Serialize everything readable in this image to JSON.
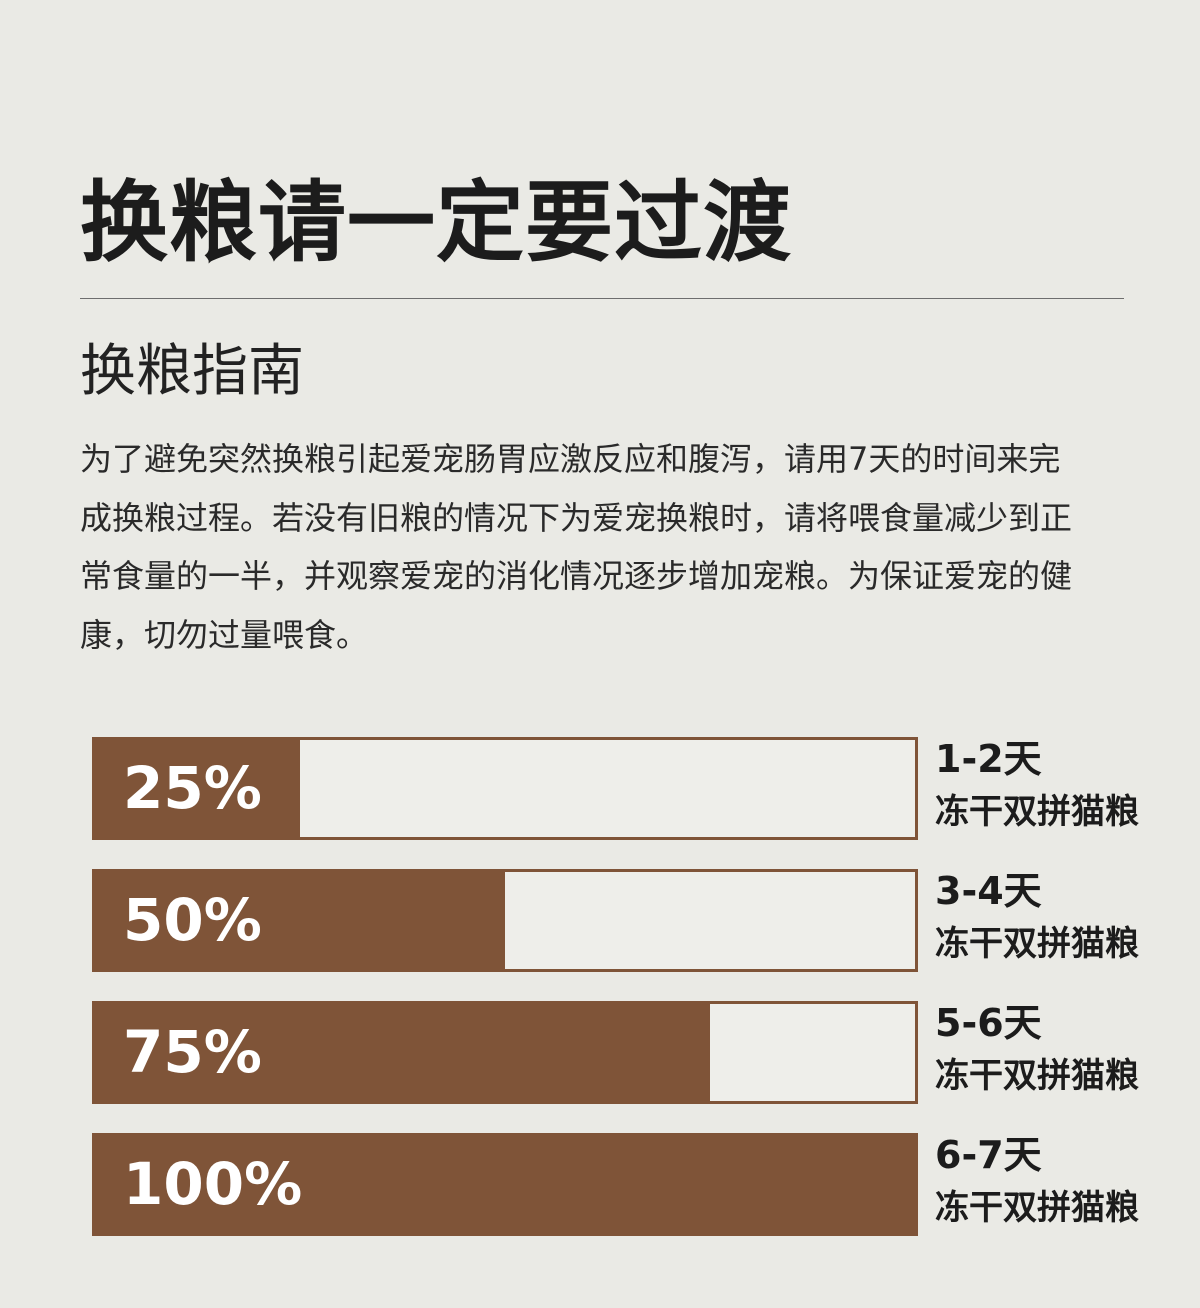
{
  "title": "换粮请一定要过渡",
  "subtitle": "换粮指南",
  "intro": "为了避免突然换粮引起爱宠肠胃应激反应和腹泻，请用7天的时间来完成换粮过程。若没有旧粮的情况下为爱宠换粮时，请将喂食量减少到正常食量的一半，并观察爱宠的消化情况逐步增加宠粮。为保证爱宠的健康，切勿过量喂食。",
  "colors": {
    "bar_fill": "#7f5438",
    "background": "#eaeae5"
  },
  "chart_data": {
    "type": "bar",
    "categories": [
      "1-2天",
      "3-4天",
      "5-6天",
      "6-7天"
    ],
    "series": [
      {
        "name": "冻干双拼猫粮",
        "values": [
          25,
          50,
          75,
          100
        ]
      }
    ],
    "value_unit": "%",
    "ylim": [
      0,
      100
    ],
    "rows": [
      {
        "percent": 25,
        "percent_label": "25%",
        "days": "1-2天",
        "product": "冻干双拼猫粮"
      },
      {
        "percent": 50,
        "percent_label": "50%",
        "days": "3-4天",
        "product": "冻干双拼猫粮"
      },
      {
        "percent": 75,
        "percent_label": "75%",
        "days": "5-6天",
        "product": "冻干双拼猫粮"
      },
      {
        "percent": 100,
        "percent_label": "100%",
        "days": "6-7天",
        "product": "冻干双拼猫粮"
      }
    ]
  }
}
